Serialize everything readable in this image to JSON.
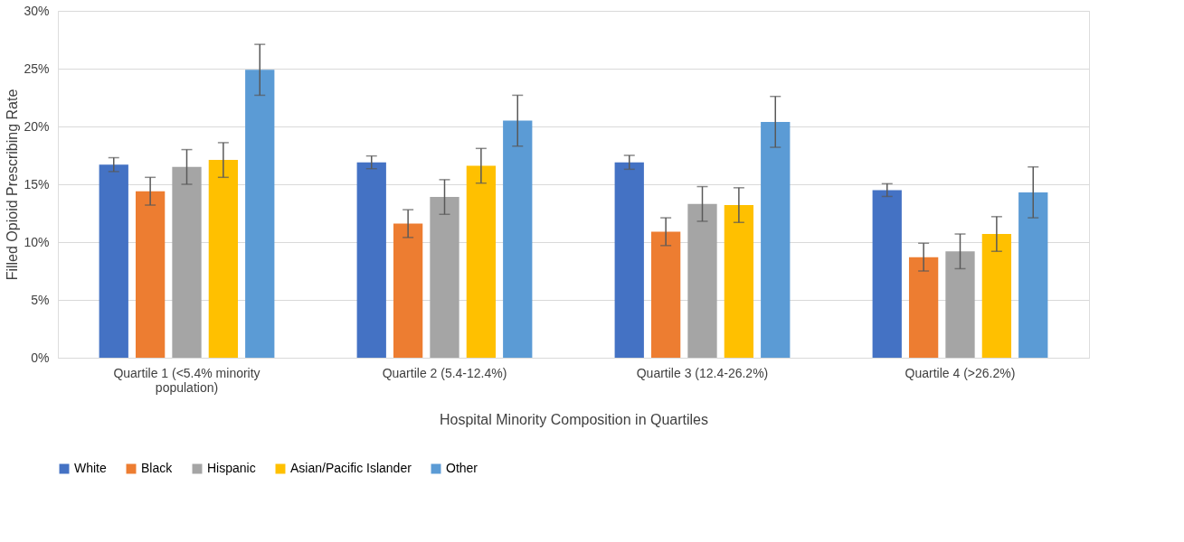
{
  "chart_data": {
    "type": "bar",
    "xlabel": "Hospital Minority Composition in Quartiles",
    "ylabel": "Filled Opioid Prescribing Rate",
    "categories": [
      "Quartile 1 (<5.4% minority population)",
      "Quartile 2 (5.4-12.4%)",
      "Quartile 3 (12.4-26.2%)",
      "Quartile 4 (>26.2%)"
    ],
    "series": [
      {
        "name": "White",
        "color": "#4472c4",
        "values": [
          16.7,
          16.9,
          16.9,
          14.5
        ],
        "errors": [
          0.6,
          0.55,
          0.6,
          0.55
        ]
      },
      {
        "name": "Black",
        "color": "#ed7d31",
        "values": [
          14.4,
          11.6,
          10.9,
          8.7
        ],
        "errors": [
          1.2,
          1.2,
          1.2,
          1.2
        ]
      },
      {
        "name": "Hispanic",
        "color": "#a5a5a5",
        "values": [
          16.5,
          13.9,
          13.3,
          9.2
        ],
        "errors": [
          1.5,
          1.5,
          1.5,
          1.5
        ]
      },
      {
        "name": "Asian/Pacific Islander",
        "color": "#ffc000",
        "values": [
          17.1,
          16.6,
          13.2,
          10.7
        ],
        "errors": [
          1.5,
          1.5,
          1.5,
          1.5
        ]
      },
      {
        "name": "Other",
        "color": "#5b9bd5",
        "values": [
          24.9,
          20.5,
          20.4,
          14.3
        ],
        "errors": [
          2.2,
          2.2,
          2.2,
          2.2
        ]
      }
    ],
    "ylim": [
      0,
      30
    ],
    "yticks": [
      {
        "value": 0,
        "label": "0%"
      },
      {
        "value": 5,
        "label": "5%"
      },
      {
        "value": 10,
        "label": "10%"
      },
      {
        "value": 15,
        "label": "15%"
      },
      {
        "value": 20,
        "label": "20%"
      },
      {
        "value": 25,
        "label": "25%"
      },
      {
        "value": 30,
        "label": "30%"
      }
    ],
    "grid": "y",
    "legend": "bottom"
  }
}
